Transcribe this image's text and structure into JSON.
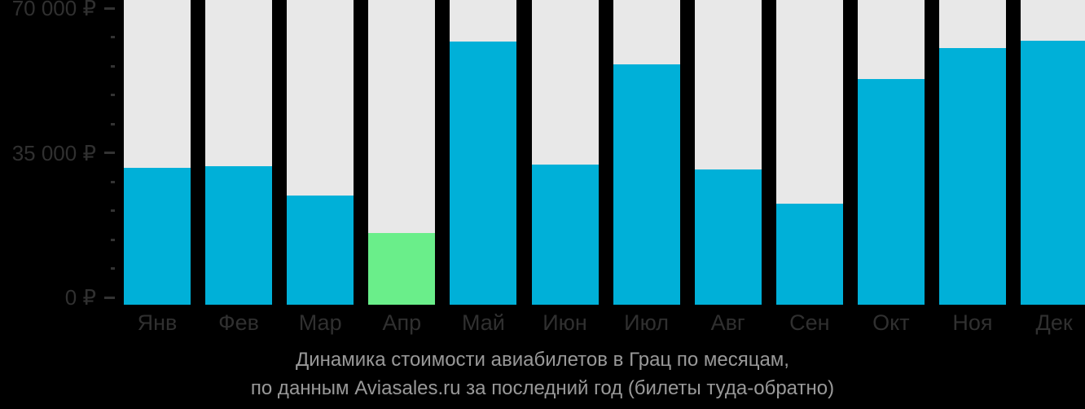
{
  "caption": {
    "line1": "Динамика стоимости авиабилетов в Грац по месяцам,",
    "line2": "по данным Aviasales.ru за последний год (билеты туда-обратно)"
  },
  "colors": {
    "background": "#000000",
    "bar": "#00b0d8",
    "bar_highlight": "#6aee8a",
    "track": "#e8e8e8",
    "axis_text": "#303030",
    "tick": "#333333",
    "caption_text": "#999999"
  },
  "chart_data": {
    "type": "bar",
    "title": "Динамика стоимости авиабилетов в Грац по месяцам, по данным Aviasales.ru за последний год (билеты туда-обратно)",
    "categories": [
      "Янв",
      "Фев",
      "Мар",
      "Апр",
      "Май",
      "Июн",
      "Июл",
      "Авг",
      "Сен",
      "Окт",
      "Ноя",
      "Дек"
    ],
    "values": [
      31400,
      31800,
      24700,
      15600,
      62000,
      32200,
      56300,
      30900,
      22700,
      52800,
      60300,
      62100
    ],
    "highlight_index": 3,
    "highlight_meaning": "cheapest month",
    "ylabel": "",
    "xlabel": "",
    "ylim": [
      0,
      70000
    ],
    "y_major_step": 35000,
    "y_minor_step": 7000,
    "y_tick_labels": [
      {
        "label": "70 000 ₽",
        "value": 70000
      },
      {
        "label": "35 000 ₽",
        "value": 35000
      },
      {
        "label": "0 ₽",
        "value": 0
      }
    ],
    "grid": false,
    "legend": false,
    "currency": "RUB"
  }
}
